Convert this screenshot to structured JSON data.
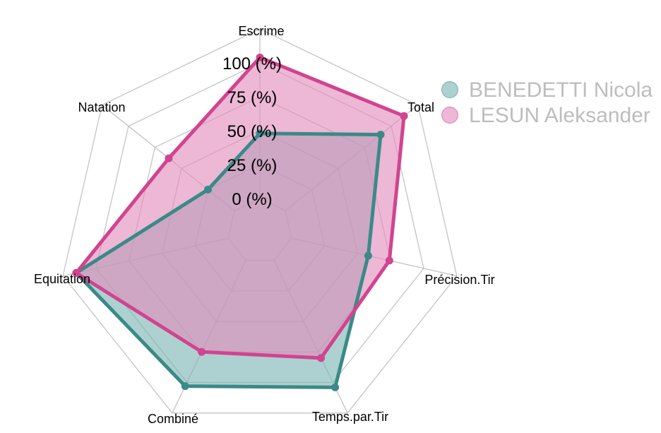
{
  "chart_data": {
    "type": "radar",
    "axes": [
      "Escrime",
      "Total",
      "Précision.Tir",
      "Temps.par.Tir",
      "Combiné",
      "Equitation",
      "Natation"
    ],
    "grid_labels": [
      "0 (%)",
      "25 (%)",
      "50 (%)",
      "75 (%)",
      "100 (%)"
    ],
    "grid_values": [
      0,
      25,
      50,
      75,
      100
    ],
    "range": [
      0,
      100
    ],
    "legend_position": "top-right",
    "series": [
      {
        "name": "BENEDETTI Nicola",
        "color": "#3a8a87",
        "fill": "#7ab5b3",
        "values": [
          48,
          90,
          58,
          104,
          103,
          115,
          25
        ]
      },
      {
        "name": "LESUN Aleksander",
        "color": "#d1448f",
        "fill": "#e08dbb",
        "values": [
          104,
          112,
          74,
          80,
          75,
          115,
          62
        ]
      }
    ]
  }
}
